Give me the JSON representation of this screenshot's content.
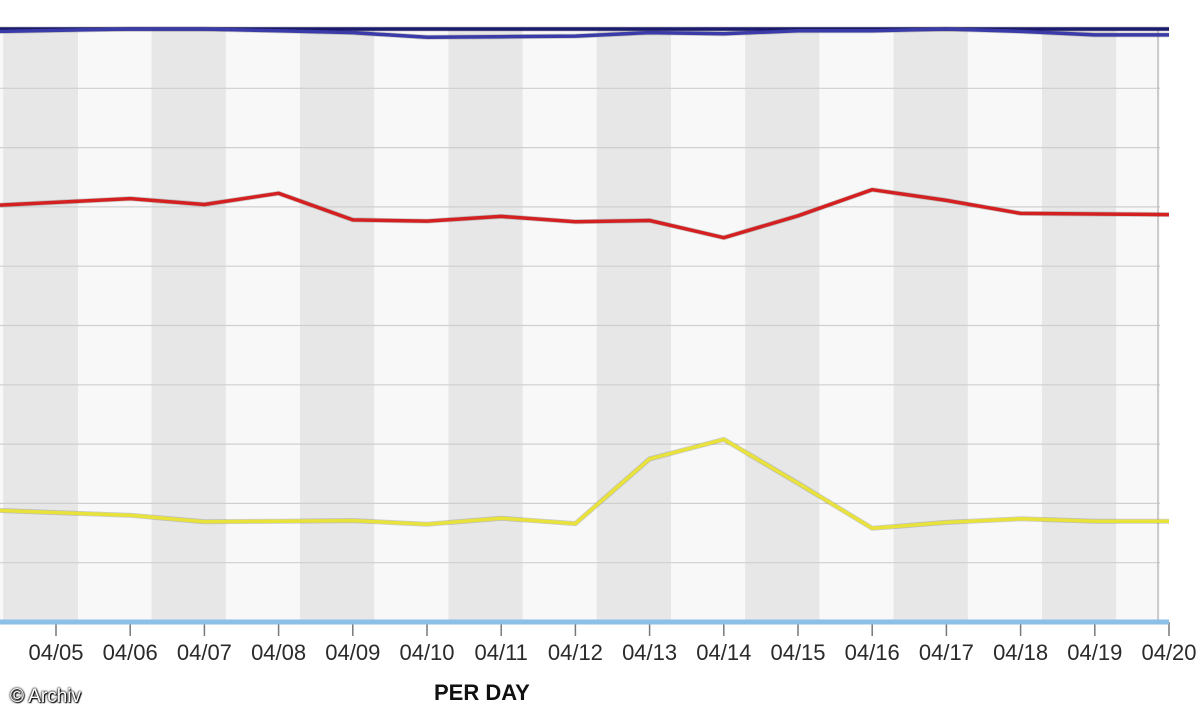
{
  "chart_data": {
    "type": "line",
    "x": [
      "04/05",
      "04/06",
      "04/07",
      "04/08",
      "04/09",
      "04/10",
      "04/11",
      "04/12",
      "04/13",
      "04/14",
      "04/15",
      "04/16",
      "04/17",
      "04/18",
      "04/19",
      "04/20"
    ],
    "ylim": [
      0,
      100
    ],
    "grid": true,
    "xlabel": "PER DAY",
    "series": [
      {
        "color": "#1a1a6e",
        "values": [
          100,
          100,
          100,
          100,
          100,
          100,
          100,
          100,
          100,
          100,
          100,
          100,
          100,
          100,
          100,
          100
        ]
      },
      {
        "color": "#3a3aa8",
        "values": [
          99.6,
          100,
          100,
          99.7,
          99.4,
          98.6,
          98.7,
          98.8,
          99.4,
          99.2,
          99.7,
          99.7,
          100,
          99.6,
          99.0,
          99.0
        ]
      },
      {
        "color": "#d42020",
        "values": [
          70.3,
          71.4,
          70.4,
          72.3,
          67.8,
          67.6,
          68.4,
          67.5,
          67.7,
          64.8,
          68.5,
          72.9,
          71.1,
          68.9,
          68.8,
          68.7
        ]
      },
      {
        "color": "#e8e23a",
        "values": [
          18.8,
          18.0,
          16.9,
          17.0,
          17.1,
          16.5,
          17.5,
          16.6,
          27.5,
          30.8,
          23.4,
          15.8,
          16.8,
          17.4,
          17.0,
          17.0
        ]
      },
      {
        "color": "#8cc0e6",
        "values": [
          0,
          0,
          0,
          0,
          0,
          0,
          0,
          0,
          0,
          0,
          0,
          0,
          0,
          0,
          0,
          0
        ]
      }
    ]
  },
  "watermark": "© Archiv"
}
